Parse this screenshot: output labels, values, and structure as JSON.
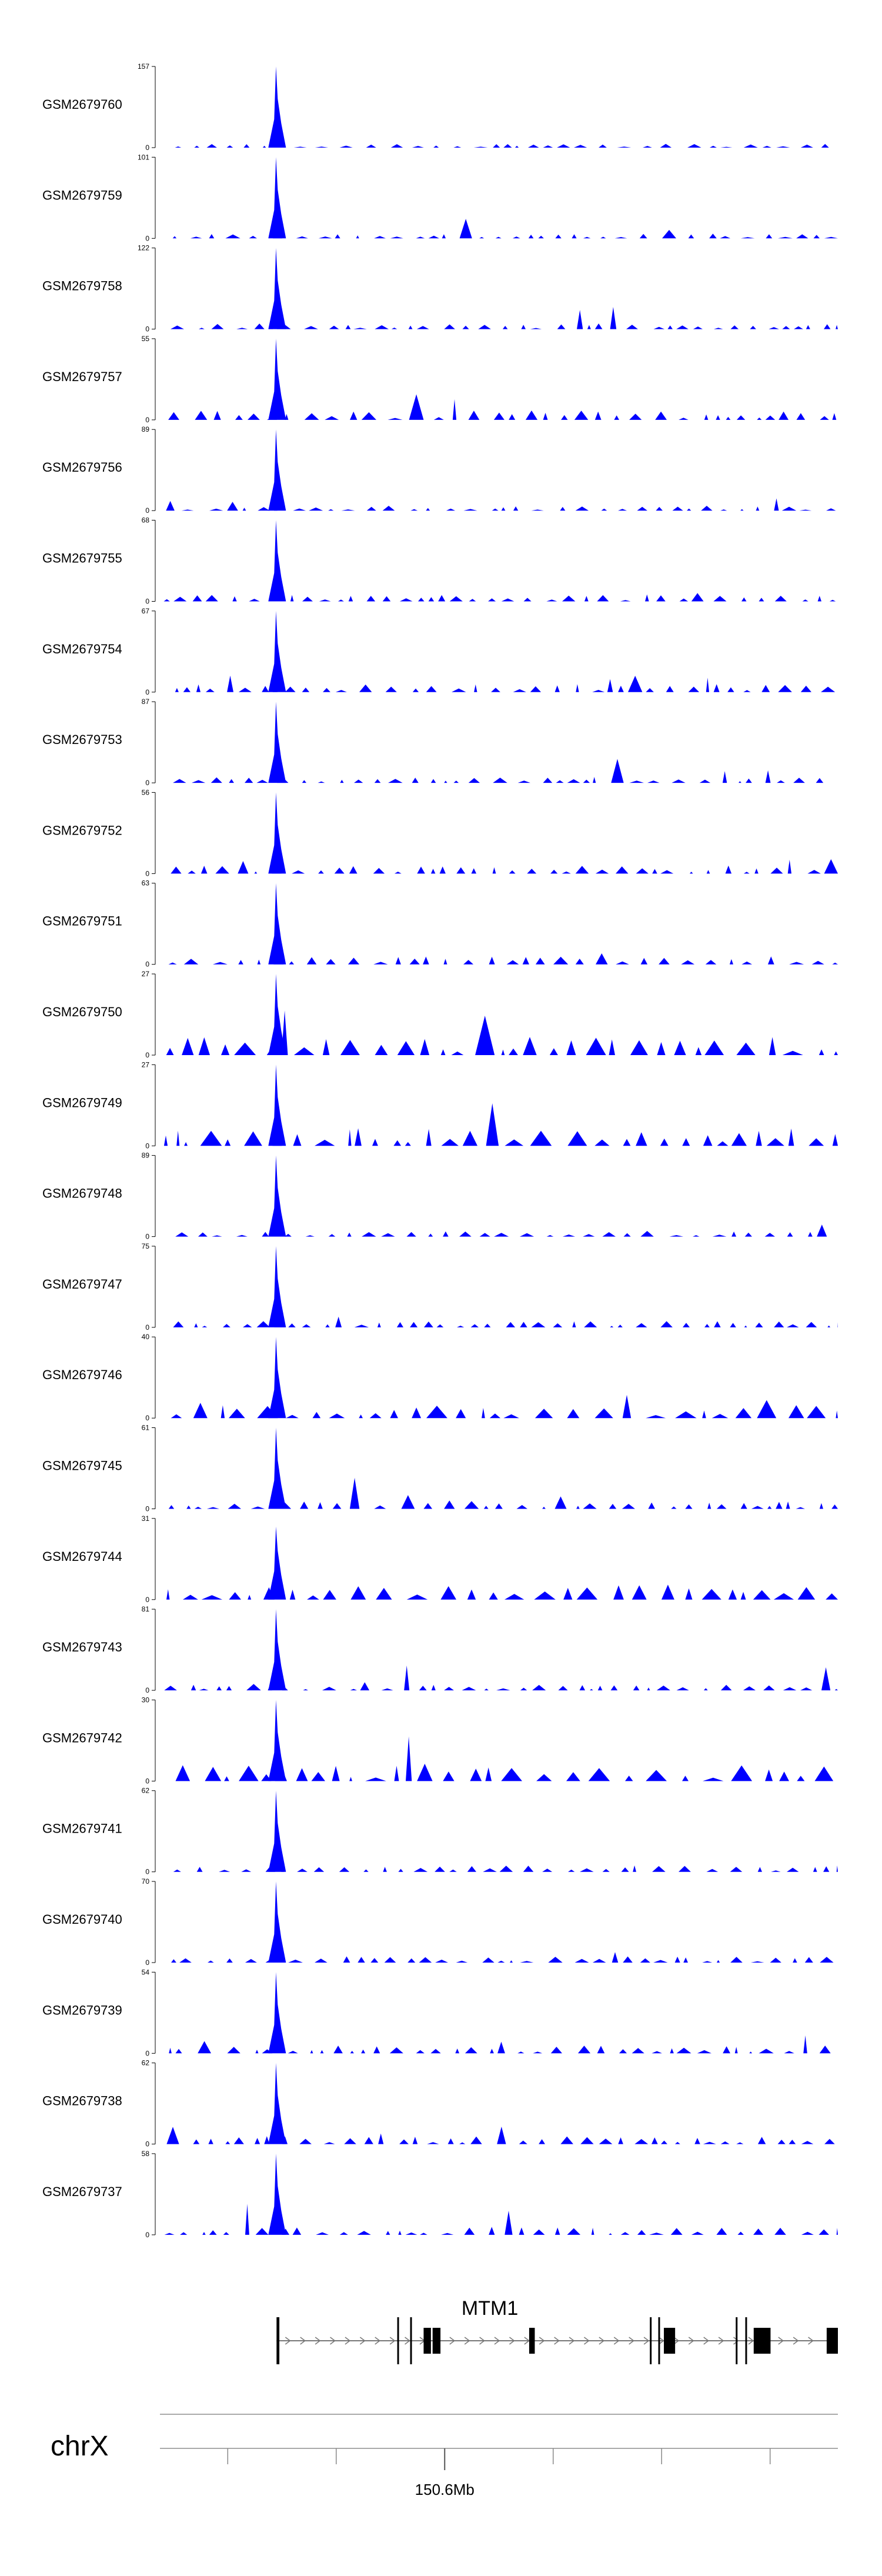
{
  "chart_data": {
    "type": "area",
    "fill_color": "#0000ff",
    "chromosome": "chrX",
    "x_tick_label": "150.6Mb",
    "tracks": [
      {
        "name": "GSM2679760",
        "max": 157,
        "min": 0,
        "seed": 11,
        "main": 1.0,
        "base": 0.05
      },
      {
        "name": "GSM2679759",
        "max": 101,
        "min": 0,
        "seed": 12,
        "main": 1.0,
        "base": 0.06
      },
      {
        "name": "GSM2679758",
        "max": 122,
        "min": 0,
        "seed": 13,
        "main": 1.0,
        "base": 0.07
      },
      {
        "name": "GSM2679757",
        "max": 55,
        "min": 0,
        "seed": 14,
        "main": 1.0,
        "base": 0.12
      },
      {
        "name": "GSM2679756",
        "max": 89,
        "min": 0,
        "seed": 15,
        "main": 1.0,
        "base": 0.06
      },
      {
        "name": "GSM2679755",
        "max": 68,
        "min": 0,
        "seed": 16,
        "main": 1.0,
        "base": 0.08
      },
      {
        "name": "GSM2679754",
        "max": 67,
        "min": 0,
        "seed": 17,
        "main": 1.0,
        "base": 0.1
      },
      {
        "name": "GSM2679753",
        "max": 87,
        "min": 0,
        "seed": 18,
        "main": 1.0,
        "base": 0.07
      },
      {
        "name": "GSM2679752",
        "max": 56,
        "min": 0,
        "seed": 19,
        "main": 1.0,
        "base": 0.1
      },
      {
        "name": "GSM2679751",
        "max": 63,
        "min": 0,
        "seed": 20,
        "main": 1.0,
        "base": 0.1
      },
      {
        "name": "GSM2679750",
        "max": 27,
        "min": 0,
        "seed": 21,
        "main": 1.0,
        "base": 0.22
      },
      {
        "name": "GSM2679749",
        "max": 27,
        "min": 0,
        "seed": 22,
        "main": 1.0,
        "base": 0.22
      },
      {
        "name": "GSM2679748",
        "max": 89,
        "min": 0,
        "seed": 23,
        "main": 1.0,
        "base": 0.07
      },
      {
        "name": "GSM2679747",
        "max": 75,
        "min": 0,
        "seed": 24,
        "main": 1.0,
        "base": 0.08
      },
      {
        "name": "GSM2679746",
        "max": 40,
        "min": 0,
        "seed": 25,
        "main": 1.0,
        "base": 0.16
      },
      {
        "name": "GSM2679745",
        "max": 61,
        "min": 0,
        "seed": 26,
        "main": 1.0,
        "base": 0.1
      },
      {
        "name": "GSM2679744",
        "max": 31,
        "min": 0,
        "seed": 27,
        "main": 0.9,
        "base": 0.2
      },
      {
        "name": "GSM2679743",
        "max": 81,
        "min": 0,
        "seed": 28,
        "main": 1.0,
        "base": 0.07
      },
      {
        "name": "GSM2679742",
        "max": 30,
        "min": 0,
        "seed": 29,
        "main": 1.0,
        "base": 0.2
      },
      {
        "name": "GSM2679741",
        "max": 62,
        "min": 0,
        "seed": 30,
        "main": 1.0,
        "base": 0.08
      },
      {
        "name": "GSM2679740",
        "max": 70,
        "min": 0,
        "seed": 31,
        "main": 1.0,
        "base": 0.08
      },
      {
        "name": "GSM2679739",
        "max": 54,
        "min": 0,
        "seed": 32,
        "main": 1.0,
        "base": 0.1
      },
      {
        "name": "GSM2679738",
        "max": 62,
        "min": 0,
        "seed": 33,
        "main": 1.0,
        "base": 0.1
      },
      {
        "name": "GSM2679737",
        "max": 58,
        "min": 0,
        "seed": 34,
        "main": 1.0,
        "base": 0.1
      }
    ],
    "gene": {
      "name": "MTM1",
      "exons": [
        {
          "start": 0.0,
          "end": 0.005
        },
        {
          "start": 0.215,
          "end": 0.218
        },
        {
          "start": 0.238,
          "end": 0.241
        },
        {
          "start": 0.262,
          "end": 0.275
        },
        {
          "start": 0.278,
          "end": 0.292
        },
        {
          "start": 0.45,
          "end": 0.46
        },
        {
          "start": 0.665,
          "end": 0.668
        },
        {
          "start": 0.68,
          "end": 0.683
        },
        {
          "start": 0.69,
          "end": 0.71
        },
        {
          "start": 0.818,
          "end": 0.821
        },
        {
          "start": 0.835,
          "end": 0.838
        },
        {
          "start": 0.85,
          "end": 0.88
        },
        {
          "start": 0.98,
          "end": 1.0
        }
      ]
    }
  }
}
